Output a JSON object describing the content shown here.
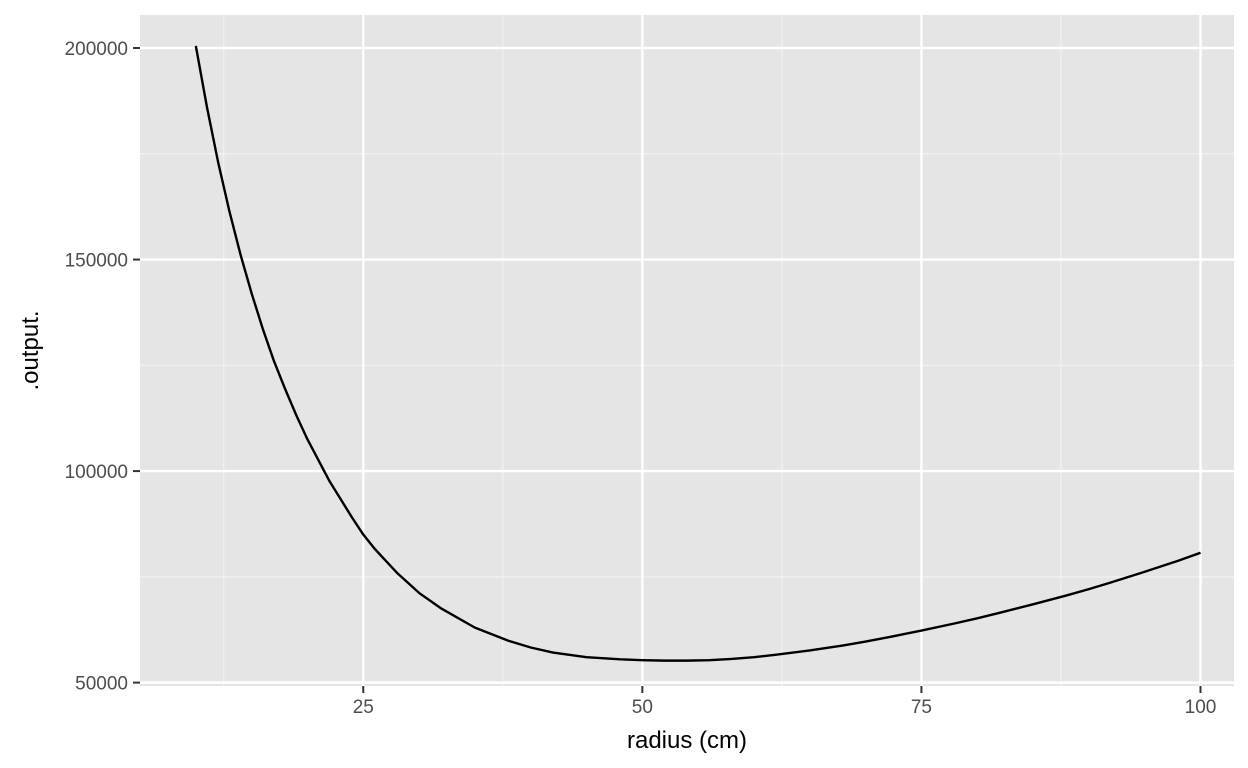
{
  "chart_data": {
    "type": "line",
    "title": "",
    "xlabel": "radius (cm)",
    "ylabel": ".output.",
    "xlim": [
      5,
      103
    ],
    "ylim": [
      49200,
      207800
    ],
    "x_ticks": [
      25,
      50,
      75,
      100
    ],
    "x_tick_labels": [
      "25",
      "50",
      "75",
      "100"
    ],
    "x_minor_ticks": [
      12.5,
      37.5,
      62.5,
      87.5
    ],
    "y_ticks": [
      50000,
      100000,
      150000,
      200000
    ],
    "y_tick_labels": [
      "50000",
      "100000",
      "150000",
      "200000"
    ],
    "y_minor_ticks": [
      75000,
      125000,
      175000
    ],
    "grid": true,
    "legend": "none",
    "series": [
      {
        "x": [
          10,
          11,
          12,
          13,
          14,
          15,
          16,
          17,
          18,
          19,
          20,
          22,
          24,
          25,
          26,
          28,
          30,
          32,
          35,
          38,
          40,
          42,
          45,
          48,
          50,
          52,
          54,
          56,
          58,
          60,
          62,
          65,
          68,
          70,
          72,
          75,
          78,
          80,
          82,
          85,
          88,
          90,
          92,
          95,
          98,
          100
        ],
        "values": [
          200500,
          186000,
          173000,
          161500,
          151200,
          142000,
          133600,
          126000,
          119400,
          113200,
          107500,
          97500,
          89000,
          85000,
          81700,
          76000,
          71200,
          67500,
          63000,
          59900,
          58300,
          57100,
          56000,
          55500,
          55300,
          55200,
          55200,
          55300,
          55600,
          56000,
          56600,
          57600,
          58800,
          59700,
          60700,
          62300,
          64000,
          65200,
          66500,
          68500,
          70600,
          72100,
          73700,
          76200,
          78800,
          80700
        ]
      }
    ],
    "colors": {
      "panel_background": "#e5e5e5",
      "grid_major": "#ffffff",
      "grid_minor": "#f2f2f2",
      "line": "#000000",
      "tick_text": "#4d4d4d",
      "tick_mark": "#333333"
    }
  }
}
